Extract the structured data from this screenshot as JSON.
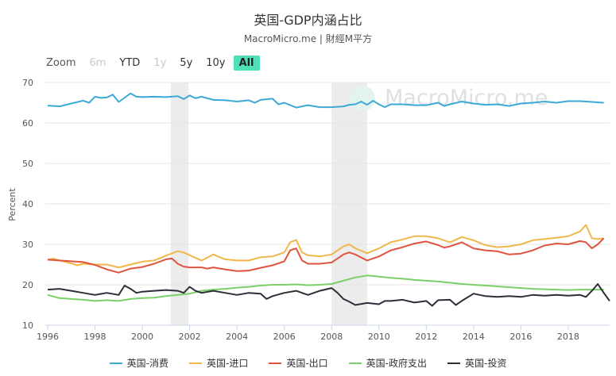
{
  "title": "英国-GDP内涵占比",
  "subtitle": "MacroMicro.me | 財經M平方",
  "watermark": "MacroMicro.me",
  "range_selector": {
    "label": "Zoom",
    "buttons": [
      {
        "label": "6m",
        "state": "disabled"
      },
      {
        "label": "YTD",
        "state": "normal"
      },
      {
        "label": "1y",
        "state": "disabled"
      },
      {
        "label": "5y",
        "state": "normal"
      },
      {
        "label": "10y",
        "state": "normal"
      },
      {
        "label": "All",
        "state": "active"
      }
    ]
  },
  "chart_data": {
    "type": "line",
    "xlabel": "",
    "ylabel": "Percent",
    "ylim": [
      10,
      70
    ],
    "xlim": [
      1995.9,
      2019.75
    ],
    "yticks": [
      10,
      20,
      30,
      40,
      50,
      60,
      70
    ],
    "xticks": [
      1996,
      1998,
      2000,
      2002,
      2004,
      2006,
      2008,
      2010,
      2012,
      2014,
      2016,
      2018
    ],
    "grid": "horizontal",
    "legend_position": "bottom",
    "recession_bands": [
      [
        2001.2,
        2001.95
      ],
      [
        2008.0,
        2009.5
      ]
    ],
    "series": [
      {
        "name": "英国-消费",
        "color": "#3daad6",
        "points": [
          [
            1996,
            64.3
          ],
          [
            1996.5,
            64.1
          ],
          [
            1997,
            64.8
          ],
          [
            1997.5,
            65.5
          ],
          [
            1997.75,
            65.0
          ],
          [
            1998,
            66.5
          ],
          [
            1998.25,
            66.2
          ],
          [
            1998.5,
            66.3
          ],
          [
            1998.75,
            67.0
          ],
          [
            1999,
            65.2
          ],
          [
            1999.5,
            67.3
          ],
          [
            1999.75,
            66.5
          ],
          [
            2000,
            66.4
          ],
          [
            2000.5,
            66.5
          ],
          [
            2001,
            66.4
          ],
          [
            2001.5,
            66.6
          ],
          [
            2001.75,
            65.9
          ],
          [
            2002,
            66.8
          ],
          [
            2002.25,
            66.1
          ],
          [
            2002.5,
            66.5
          ],
          [
            2003,
            65.7
          ],
          [
            2003.5,
            65.6
          ],
          [
            2004,
            65.3
          ],
          [
            2004.5,
            65.6
          ],
          [
            2004.75,
            65.0
          ],
          [
            2005,
            65.7
          ],
          [
            2005.5,
            66.0
          ],
          [
            2005.75,
            64.6
          ],
          [
            2006,
            65.0
          ],
          [
            2006.5,
            63.8
          ],
          [
            2007,
            64.4
          ],
          [
            2007.5,
            63.9
          ],
          [
            2008,
            63.9
          ],
          [
            2008.5,
            64.1
          ],
          [
            2008.75,
            64.5
          ],
          [
            2009,
            64.6
          ],
          [
            2009.25,
            65.3
          ],
          [
            2009.5,
            64.5
          ],
          [
            2009.75,
            65.5
          ],
          [
            2010,
            64.6
          ],
          [
            2010.25,
            63.9
          ],
          [
            2010.5,
            64.6
          ],
          [
            2011,
            64.6
          ],
          [
            2011.5,
            64.4
          ],
          [
            2012,
            64.4
          ],
          [
            2012.5,
            65.0
          ],
          [
            2012.75,
            64.2
          ],
          [
            2013,
            64.6
          ],
          [
            2013.5,
            65.3
          ],
          [
            2014,
            64.8
          ],
          [
            2014.5,
            64.5
          ],
          [
            2015,
            64.6
          ],
          [
            2015.5,
            64.2
          ],
          [
            2016,
            64.8
          ],
          [
            2016.5,
            65.0
          ],
          [
            2017,
            65.3
          ],
          [
            2017.5,
            65.0
          ],
          [
            2018,
            65.4
          ],
          [
            2018.5,
            65.4
          ],
          [
            2019,
            65.2
          ],
          [
            2019.5,
            65.0
          ]
        ]
      },
      {
        "name": "英国-进口",
        "color": "#f0b84a",
        "points": [
          [
            1996,
            26.2
          ],
          [
            1996.25,
            26.5
          ],
          [
            1996.5,
            26.0
          ],
          [
            1997,
            25.3
          ],
          [
            1997.25,
            24.8
          ],
          [
            1997.5,
            25.2
          ],
          [
            1998,
            25.0
          ],
          [
            1998.5,
            25.0
          ],
          [
            1999,
            24.3
          ],
          [
            1999.5,
            25.0
          ],
          [
            2000,
            25.7
          ],
          [
            2000.5,
            26.0
          ],
          [
            2001,
            27.2
          ],
          [
            2001.5,
            28.3
          ],
          [
            2001.75,
            28.0
          ],
          [
            2002,
            27.3
          ],
          [
            2002.5,
            26.0
          ],
          [
            2002.75,
            26.7
          ],
          [
            2003,
            27.5
          ],
          [
            2003.5,
            26.3
          ],
          [
            2004,
            26.0
          ],
          [
            2004.5,
            26.0
          ],
          [
            2005,
            26.8
          ],
          [
            2005.5,
            27.0
          ],
          [
            2006,
            28.0
          ],
          [
            2006.25,
            30.5
          ],
          [
            2006.5,
            31.1
          ],
          [
            2006.75,
            28.0
          ],
          [
            2007,
            27.3
          ],
          [
            2007.5,
            27.0
          ],
          [
            2008,
            27.5
          ],
          [
            2008.5,
            29.5
          ],
          [
            2008.75,
            30.0
          ],
          [
            2009,
            29.0
          ],
          [
            2009.5,
            27.8
          ],
          [
            2010,
            29.0
          ],
          [
            2010.5,
            30.5
          ],
          [
            2011,
            31.2
          ],
          [
            2011.5,
            32.0
          ],
          [
            2012,
            32.0
          ],
          [
            2012.5,
            31.5
          ],
          [
            2012.75,
            31.0
          ],
          [
            2013,
            30.5
          ],
          [
            2013.5,
            31.8
          ],
          [
            2014,
            31.0
          ],
          [
            2014.5,
            29.8
          ],
          [
            2015,
            29.3
          ],
          [
            2015.5,
            29.5
          ],
          [
            2016,
            30.0
          ],
          [
            2016.5,
            31.0
          ],
          [
            2017,
            31.3
          ],
          [
            2017.5,
            31.6
          ],
          [
            2018,
            32.0
          ],
          [
            2018.5,
            33.2
          ],
          [
            2018.75,
            34.8
          ],
          [
            2019,
            31.5
          ],
          [
            2019.25,
            31.3
          ],
          [
            2019.5,
            31.5
          ]
        ]
      },
      {
        "name": "英国-出口",
        "color": "#e0533f",
        "points": [
          [
            1996,
            26.2
          ],
          [
            1996.5,
            26.0
          ],
          [
            1997,
            25.8
          ],
          [
            1997.5,
            25.6
          ],
          [
            1998,
            24.9
          ],
          [
            1998.5,
            23.8
          ],
          [
            1999,
            23.0
          ],
          [
            1999.5,
            24.0
          ],
          [
            2000,
            24.4
          ],
          [
            2000.5,
            25.2
          ],
          [
            2001,
            26.3
          ],
          [
            2001.25,
            26.5
          ],
          [
            2001.5,
            25.2
          ],
          [
            2001.75,
            24.5
          ],
          [
            2002,
            24.3
          ],
          [
            2002.5,
            24.3
          ],
          [
            2002.75,
            24.0
          ],
          [
            2003,
            24.3
          ],
          [
            2003.5,
            23.8
          ],
          [
            2004,
            23.4
          ],
          [
            2004.5,
            23.5
          ],
          [
            2005,
            24.2
          ],
          [
            2005.5,
            24.8
          ],
          [
            2006,
            25.8
          ],
          [
            2006.25,
            28.5
          ],
          [
            2006.5,
            29.0
          ],
          [
            2006.75,
            26.0
          ],
          [
            2007,
            25.2
          ],
          [
            2007.5,
            25.2
          ],
          [
            2008,
            25.5
          ],
          [
            2008.5,
            27.5
          ],
          [
            2008.75,
            28.0
          ],
          [
            2009,
            27.5
          ],
          [
            2009.5,
            26.0
          ],
          [
            2010,
            27.0
          ],
          [
            2010.5,
            28.5
          ],
          [
            2011,
            29.3
          ],
          [
            2011.5,
            30.2
          ],
          [
            2012,
            30.7
          ],
          [
            2012.5,
            29.8
          ],
          [
            2012.75,
            29.2
          ],
          [
            2013,
            29.5
          ],
          [
            2013.5,
            30.5
          ],
          [
            2014,
            29.0
          ],
          [
            2014.5,
            28.5
          ],
          [
            2015,
            28.3
          ],
          [
            2015.5,
            27.5
          ],
          [
            2016,
            27.7
          ],
          [
            2016.5,
            28.5
          ],
          [
            2017,
            29.7
          ],
          [
            2017.5,
            30.2
          ],
          [
            2018,
            30.0
          ],
          [
            2018.5,
            30.8
          ],
          [
            2018.75,
            30.5
          ],
          [
            2019,
            29.0
          ],
          [
            2019.25,
            30.0
          ],
          [
            2019.5,
            31.5
          ]
        ]
      },
      {
        "name": "英国-政府支出",
        "color": "#7ccf67",
        "points": [
          [
            1996,
            17.5
          ],
          [
            1996.5,
            16.7
          ],
          [
            1997,
            16.5
          ],
          [
            1997.5,
            16.3
          ],
          [
            1998,
            16.0
          ],
          [
            1998.5,
            16.2
          ],
          [
            1999,
            16.0
          ],
          [
            1999.5,
            16.5
          ],
          [
            2000,
            16.7
          ],
          [
            2000.5,
            16.8
          ],
          [
            2001,
            17.2
          ],
          [
            2001.5,
            17.5
          ],
          [
            2002,
            17.8
          ],
          [
            2002.5,
            18.5
          ],
          [
            2003,
            18.8
          ],
          [
            2003.5,
            19.0
          ],
          [
            2004,
            19.3
          ],
          [
            2004.5,
            19.5
          ],
          [
            2005,
            19.8
          ],
          [
            2005.5,
            20.0
          ],
          [
            2006,
            20.0
          ],
          [
            2006.5,
            20.1
          ],
          [
            2007,
            19.9
          ],
          [
            2007.5,
            20.0
          ],
          [
            2008,
            20.2
          ],
          [
            2008.5,
            21.0
          ],
          [
            2009,
            21.8
          ],
          [
            2009.5,
            22.3
          ],
          [
            2010,
            22.0
          ],
          [
            2010.5,
            21.7
          ],
          [
            2011,
            21.5
          ],
          [
            2011.5,
            21.2
          ],
          [
            2012,
            21.0
          ],
          [
            2012.5,
            20.8
          ],
          [
            2013,
            20.5
          ],
          [
            2013.5,
            20.2
          ],
          [
            2014,
            20.0
          ],
          [
            2014.5,
            19.8
          ],
          [
            2015,
            19.6
          ],
          [
            2015.5,
            19.4
          ],
          [
            2016,
            19.2
          ],
          [
            2016.5,
            19.0
          ],
          [
            2017,
            18.9
          ],
          [
            2017.5,
            18.8
          ],
          [
            2018,
            18.7
          ],
          [
            2018.5,
            18.8
          ],
          [
            2019,
            18.8
          ],
          [
            2019.5,
            18.8
          ]
        ]
      },
      {
        "name": "英国-投资",
        "color": "#2b3038",
        "points": [
          [
            1996,
            18.8
          ],
          [
            1996.5,
            19.0
          ],
          [
            1997,
            18.5
          ],
          [
            1997.5,
            18.0
          ],
          [
            1998,
            17.5
          ],
          [
            1998.5,
            18.0
          ],
          [
            1999,
            17.5
          ],
          [
            1999.25,
            19.8
          ],
          [
            1999.5,
            19.0
          ],
          [
            1999.75,
            18.0
          ],
          [
            2000,
            18.3
          ],
          [
            2000.5,
            18.5
          ],
          [
            2001,
            18.7
          ],
          [
            2001.5,
            18.5
          ],
          [
            2001.75,
            18.0
          ],
          [
            2002,
            19.5
          ],
          [
            2002.25,
            18.5
          ],
          [
            2002.5,
            18.0
          ],
          [
            2003,
            18.5
          ],
          [
            2003.5,
            18.0
          ],
          [
            2004,
            17.5
          ],
          [
            2004.5,
            18.0
          ],
          [
            2005,
            17.8
          ],
          [
            2005.25,
            16.5
          ],
          [
            2005.5,
            17.2
          ],
          [
            2006,
            18.0
          ],
          [
            2006.5,
            18.5
          ],
          [
            2007,
            17.5
          ],
          [
            2007.5,
            18.5
          ],
          [
            2008,
            19.2
          ],
          [
            2008.25,
            18.0
          ],
          [
            2008.5,
            16.5
          ],
          [
            2008.75,
            15.8
          ],
          [
            2009,
            15.0
          ],
          [
            2009.5,
            15.5
          ],
          [
            2010,
            15.2
          ],
          [
            2010.25,
            16.0
          ],
          [
            2010.5,
            16.0
          ],
          [
            2011,
            16.3
          ],
          [
            2011.5,
            15.6
          ],
          [
            2012,
            16.0
          ],
          [
            2012.25,
            14.8
          ],
          [
            2012.5,
            16.2
          ],
          [
            2013,
            16.3
          ],
          [
            2013.25,
            15.0
          ],
          [
            2013.5,
            16.0
          ],
          [
            2014,
            17.8
          ],
          [
            2014.5,
            17.2
          ],
          [
            2015,
            17.0
          ],
          [
            2015.5,
            17.2
          ],
          [
            2016,
            17.0
          ],
          [
            2016.5,
            17.5
          ],
          [
            2017,
            17.3
          ],
          [
            2017.5,
            17.5
          ],
          [
            2018,
            17.3
          ],
          [
            2018.5,
            17.5
          ],
          [
            2018.75,
            17.0
          ],
          [
            2019,
            18.5
          ],
          [
            2019.25,
            20.2
          ],
          [
            2019.5,
            18.0
          ],
          [
            2019.75,
            16.0
          ]
        ]
      }
    ]
  }
}
